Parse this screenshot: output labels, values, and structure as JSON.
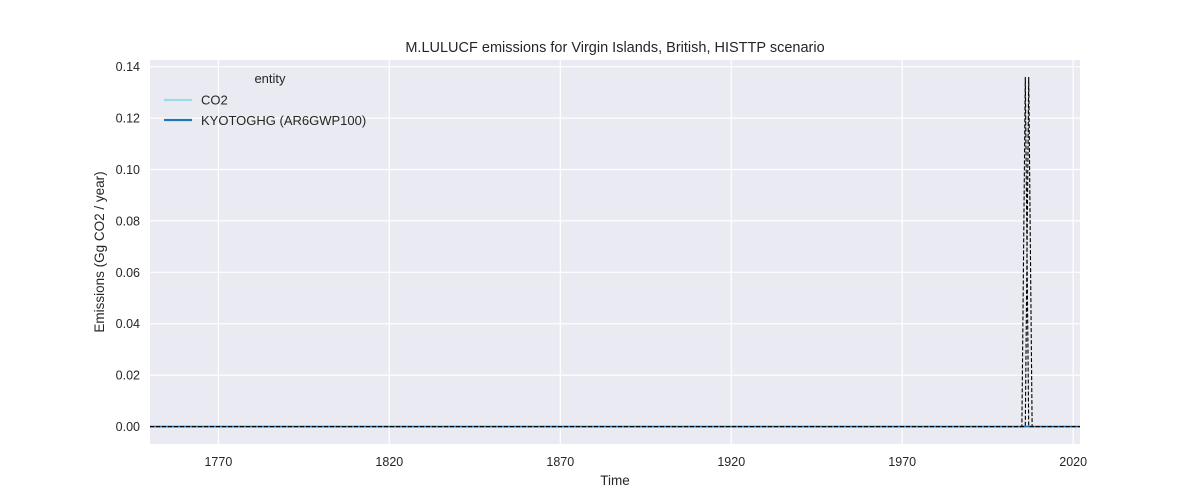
{
  "chart_data": {
    "type": "line",
    "title": "M.LULUCF emissions for Virgin Islands, British, HISTTP scenario",
    "xlabel": "Time",
    "ylabel": "Emissions (Gg CO2 / year)",
    "xlim": [
      1750,
      2022
    ],
    "ylim": [
      -0.0068,
      0.1426
    ],
    "xticks": [
      1770,
      1820,
      1870,
      1920,
      1970,
      2020
    ],
    "yticks": [
      0.0,
      0.02,
      0.04,
      0.06,
      0.08,
      0.1,
      0.12,
      0.14
    ],
    "ytick_labels": [
      "0.00",
      "0.02",
      "0.04",
      "0.06",
      "0.08",
      "0.10",
      "0.12",
      "0.14"
    ],
    "grid": true,
    "legend": {
      "title": "entity",
      "location": "upper-left"
    },
    "series": [
      {
        "name": "CO2",
        "color": "#9edae5",
        "style": "solid",
        "x": [
          1750,
          2006,
          2007,
          2008,
          2022
        ],
        "y": [
          0.0,
          0.0,
          0.0,
          0.0,
          0.0
        ]
      },
      {
        "name": "KYOTOGHG (AR6GWP100)",
        "color": "#1f77b4",
        "style": "solid",
        "x": [
          1750,
          2006,
          2007,
          2008,
          2022
        ],
        "y": [
          0.0,
          0.0,
          0.0,
          0.0,
          0.0
        ]
      },
      {
        "name": "",
        "color": "#000000",
        "style": "dashed",
        "x": [
          1750,
          2005,
          2006,
          2007,
          2008,
          2022
        ],
        "y": [
          0.0,
          0.0,
          0.136,
          0.0,
          0.0,
          0.0
        ]
      },
      {
        "name": "",
        "color": "#000000",
        "style": "dashed",
        "x": [
          1750,
          2006,
          2007,
          2008,
          2022
        ],
        "y": [
          0.0,
          0.0,
          0.136,
          0.0,
          0.0
        ]
      }
    ]
  }
}
